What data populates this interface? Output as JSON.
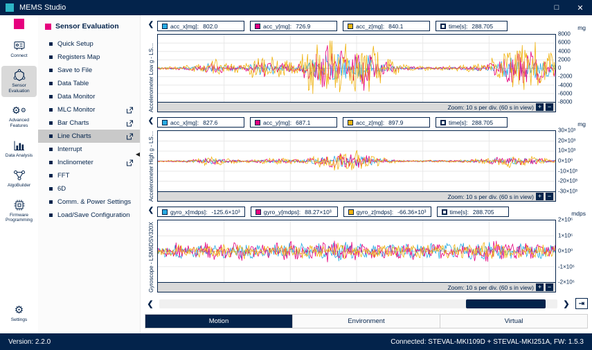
{
  "app": {
    "title": "MEMS Studio"
  },
  "window": {
    "maximize_glyph": "□",
    "close_glyph": "✕"
  },
  "nav_rail": {
    "items": [
      {
        "id": "connect",
        "label": "Connect",
        "icon": "board-icon",
        "selected": false,
        "pinned_bottom": false
      },
      {
        "id": "sensor-evaluation",
        "label": "Sensor Evaluation",
        "icon": "hexagon-network-icon",
        "selected": true,
        "pinned_bottom": false
      },
      {
        "id": "advanced-features",
        "label": "Advanced Features",
        "icon": "gears-icon",
        "selected": false,
        "pinned_bottom": false
      },
      {
        "id": "data-analysis",
        "label": "Data Analysis",
        "icon": "bar-chart-icon",
        "selected": false,
        "pinned_bottom": false
      },
      {
        "id": "algobuilder",
        "label": "AlgoBuilder",
        "icon": "nodes-icon",
        "selected": false,
        "pinned_bottom": false
      },
      {
        "id": "firmware-programming",
        "label": "Firmware Programming",
        "icon": "chip-icon",
        "selected": false,
        "pinned_bottom": false
      },
      {
        "id": "settings",
        "label": "Settings",
        "icon": "gear-icon",
        "selected": false,
        "pinned_bottom": true
      }
    ]
  },
  "sidebar": {
    "header": "Sensor Evaluation",
    "collapse_glyph": "◀",
    "items": [
      {
        "label": "Quick Setup",
        "external": false,
        "selected": false
      },
      {
        "label": "Registers Map",
        "external": false,
        "selected": false
      },
      {
        "label": "Save to File",
        "external": false,
        "selected": false
      },
      {
        "label": "Data Table",
        "external": false,
        "selected": false
      },
      {
        "label": "Data Monitor",
        "external": false,
        "selected": false
      },
      {
        "label": "MLC Monitor",
        "external": true,
        "selected": false
      },
      {
        "label": "Bar Charts",
        "external": true,
        "selected": false
      },
      {
        "label": "Line Charts",
        "external": true,
        "selected": true
      },
      {
        "label": "Interrupt",
        "external": false,
        "selected": false
      },
      {
        "label": "Inclinometer",
        "external": true,
        "selected": false
      },
      {
        "label": "FFT",
        "external": false,
        "selected": false
      },
      {
        "label": "6D",
        "external": false,
        "selected": false
      },
      {
        "label": "Comm. & Power Settings",
        "external": false,
        "selected": false
      },
      {
        "label": "Load/Save Configuration",
        "external": false,
        "selected": false
      }
    ]
  },
  "chart_ui": {
    "collapse_glyph": "❮",
    "zoom_in": "+",
    "zoom_out": "−"
  },
  "chart_data": [
    {
      "type": "line",
      "title": "Accelerometer Low g - LS…",
      "unit": "mg",
      "ylim": [
        -8000,
        8000
      ],
      "yticks": [
        "8000",
        "6000",
        "4000",
        "2000",
        "0",
        "-2000",
        "-4000",
        "-6000",
        "-8000"
      ],
      "x_per_div_s": 10,
      "x_window_s": 60,
      "x_window": "Zoom: 10 s per div. (60 s in view)",
      "time_s": 288.705,
      "legend": [
        {
          "name": "acc_x",
          "label": "acc_x[mg]:",
          "value": "802.0",
          "color": "#29ABE2"
        },
        {
          "name": "acc_y",
          "label": "acc_y[mg]:",
          "value": "726.9",
          "color": "#E6007E"
        },
        {
          "name": "acc_z",
          "label": "acc_z[mg]:",
          "value": "840.1",
          "color": "#F0B310"
        },
        {
          "name": "time",
          "label": "time[s]:",
          "value": "288.705",
          "color": "#FFFFFF"
        }
      ],
      "series": [
        {
          "name": "acc_x",
          "color": "#29ABE2",
          "amp": 3800,
          "seed": 11
        },
        {
          "name": "acc_y",
          "color": "#E6007E",
          "amp": 5200,
          "seed": 22
        },
        {
          "name": "acc_z",
          "color": "#F0B310",
          "amp": 8000,
          "seed": 33
        }
      ],
      "envelope": [
        0.05,
        0.07,
        0.1,
        0.28,
        0.18,
        0.1,
        0.45,
        0.3,
        0.15,
        0.85,
        1.0,
        0.7,
        0.95,
        0.4,
        0.12,
        0.07,
        0.06,
        0.08,
        0.1,
        0.15,
        0.55,
        0.9,
        0.75,
        0.35
      ]
    },
    {
      "type": "line",
      "title": "Accelerometer High g - LS…",
      "unit": "mg",
      "ylim": [
        -30000,
        30000
      ],
      "yticks": [
        "30×10³",
        "20×10³",
        "10×10³",
        "0×10⁰",
        "-10×10³",
        "-20×10³",
        "-30×10³"
      ],
      "x_per_div_s": 10,
      "x_window_s": 60,
      "x_window": "Zoom: 10 s per div. (60 s in view)",
      "time_s": 288.705,
      "legend": [
        {
          "name": "acc_x",
          "label": "acc_x[mg]:",
          "value": "827.6",
          "color": "#29ABE2"
        },
        {
          "name": "acc_y",
          "label": "acc_y[mg]:",
          "value": "687.1",
          "color": "#E6007E"
        },
        {
          "name": "acc_z",
          "label": "acc_z[mg]:",
          "value": "897.9",
          "color": "#F0B310"
        },
        {
          "name": "time",
          "label": "time[s]:",
          "value": "288.705",
          "color": "#FFFFFF"
        }
      ],
      "series": [
        {
          "name": "acc_x",
          "color": "#29ABE2",
          "amp": 6000,
          "seed": 44
        },
        {
          "name": "acc_y",
          "color": "#E6007E",
          "amp": 8000,
          "seed": 55
        },
        {
          "name": "acc_z",
          "color": "#F0B310",
          "amp": 11000,
          "seed": 66
        }
      ],
      "envelope": [
        0.06,
        0.08,
        0.18,
        0.45,
        0.25,
        0.12,
        0.2,
        0.3,
        0.2,
        0.4,
        0.85,
        1.0,
        0.8,
        0.3,
        0.12,
        0.08,
        0.1,
        0.12,
        0.18,
        0.3,
        0.55,
        0.45,
        0.35,
        0.15
      ]
    },
    {
      "type": "line",
      "title": "Gyroscope - LSM6DSV320X",
      "unit": "mdps",
      "ylim": [
        -2000000,
        2000000
      ],
      "yticks": [
        "2×10⁶",
        "1×10⁶",
        "0×10⁰",
        "-1×10⁶",
        "-2×10⁶"
      ],
      "x_per_div_s": 10,
      "x_window_s": 60,
      "x_window": "Zoom: 10 s per div. (60 s in view)",
      "time_s": 288.705,
      "legend": [
        {
          "name": "gyro_x",
          "label": "gyro_x[mdps]:",
          "value": "-125.6×10³",
          "color": "#29ABE2"
        },
        {
          "name": "gyro_y",
          "label": "gyro_y[mdps]:",
          "value": "88.27×10³",
          "color": "#E6007E"
        },
        {
          "name": "gyro_z",
          "label": "gyro_z[mdps]:",
          "value": "-66.36×10³",
          "color": "#F0B310"
        },
        {
          "name": "time",
          "label": "time[s]:",
          "value": "288.705",
          "color": "#FFFFFF"
        }
      ],
      "series": [
        {
          "name": "gyro_x",
          "color": "#29ABE2",
          "amp": 850000,
          "seed": 77
        },
        {
          "name": "gyro_y",
          "color": "#E6007E",
          "amp": 950000,
          "seed": 88
        },
        {
          "name": "gyro_z",
          "color": "#F0B310",
          "amp": 750000,
          "seed": 99
        }
      ],
      "envelope": [
        0.35,
        0.55,
        0.45,
        0.6,
        0.5,
        0.65,
        0.45,
        0.55,
        0.7,
        0.55,
        0.75,
        0.65,
        0.55,
        0.5,
        0.6,
        0.55,
        0.65,
        0.55,
        0.6,
        0.7,
        0.65,
        0.55,
        0.6,
        0.45
      ]
    }
  ],
  "scrollbar": {
    "left_glyph": "❮",
    "right_glyph": "❯",
    "skip_end_glyph": "⇥",
    "thumb_left_pct": 77,
    "thumb_width_pct": 20
  },
  "tabs": {
    "items": [
      {
        "label": "Motion",
        "selected": true
      },
      {
        "label": "Environment",
        "selected": false
      },
      {
        "label": "Virtual",
        "selected": false
      }
    ]
  },
  "statusbar": {
    "version": "Version: 2.2.0",
    "connection": "Connected:  STEVAL-MKI109D + STEVAL-MKI251A, FW: 1.5.3"
  }
}
